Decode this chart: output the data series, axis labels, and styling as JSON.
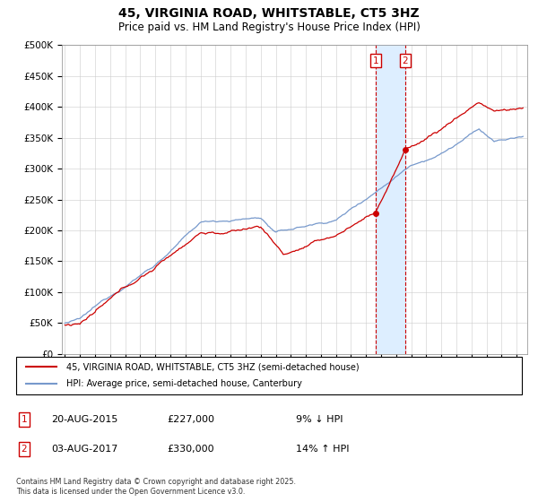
{
  "title": "45, VIRGINIA ROAD, WHITSTABLE, CT5 3HZ",
  "subtitle": "Price paid vs. HM Land Registry's House Price Index (HPI)",
  "ylim": [
    0,
    500000
  ],
  "transaction1_date": 2015.63,
  "transaction1_price": 227000,
  "transaction1_label": "1",
  "transaction2_date": 2017.59,
  "transaction2_price": 330000,
  "transaction2_label": "2",
  "legend_line1": "45, VIRGINIA ROAD, WHITSTABLE, CT5 3HZ (semi-detached house)",
  "legend_line2": "HPI: Average price, semi-detached house, Canterbury",
  "note1_num": "1",
  "note1_date": "20-AUG-2015",
  "note1_price": "£227,000",
  "note1_pct": "9% ↓ HPI",
  "note2_num": "2",
  "note2_date": "03-AUG-2017",
  "note2_price": "£330,000",
  "note2_pct": "14% ↑ HPI",
  "footer": "Contains HM Land Registry data © Crown copyright and database right 2025.\nThis data is licensed under the Open Government Licence v3.0.",
  "hpi_color": "#7799cc",
  "price_color": "#cc0000",
  "shade_color": "#ddeeff"
}
